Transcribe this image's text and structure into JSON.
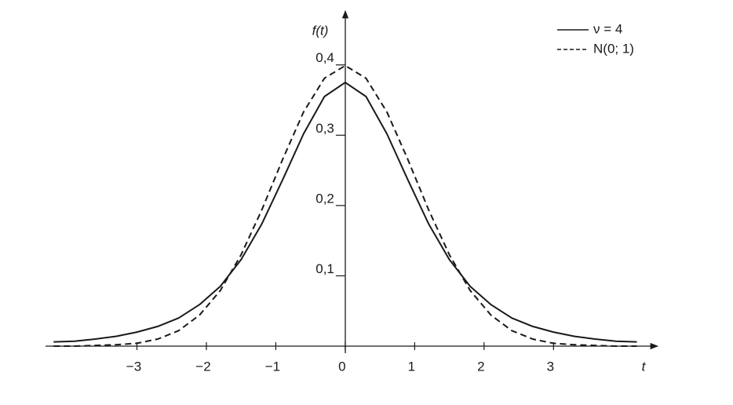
{
  "chart_data": {
    "type": "line",
    "y_label": "f(t)",
    "x_label": "t",
    "x": [
      -4.2,
      -3.9,
      -3.6,
      -3.3,
      -3.0,
      -2.7,
      -2.4,
      -2.1,
      -1.8,
      -1.5,
      -1.2,
      -0.9,
      -0.6,
      -0.3,
      0,
      0.3,
      0.6,
      0.9,
      1.2,
      1.5,
      1.8,
      2.1,
      2.4,
      2.7,
      3.0,
      3.3,
      3.6,
      3.9,
      4.2
    ],
    "series": [
      {
        "name": "ν = 4",
        "color": "#1a1a1a",
        "dash": "solid",
        "values": [
          0.006,
          0.007,
          0.01,
          0.014,
          0.02,
          0.028,
          0.04,
          0.059,
          0.085,
          0.123,
          0.174,
          0.237,
          0.302,
          0.355,
          0.375,
          0.355,
          0.302,
          0.237,
          0.174,
          0.123,
          0.085,
          0.059,
          0.04,
          0.028,
          0.02,
          0.014,
          0.01,
          0.007,
          0.006
        ]
      },
      {
        "name": "N(0; 1)",
        "color": "#1a1a1a",
        "dash": "dashed",
        "values": [
          0.0,
          0.0,
          0.001,
          0.002,
          0.004,
          0.01,
          0.022,
          0.044,
          0.079,
          0.13,
          0.194,
          0.266,
          0.333,
          0.381,
          0.399,
          0.381,
          0.333,
          0.266,
          0.194,
          0.13,
          0.079,
          0.044,
          0.022,
          0.01,
          0.004,
          0.002,
          0.001,
          0.0,
          0.0
        ]
      }
    ],
    "xlim": [
      -4.3,
      4.5
    ],
    "ylim": [
      0,
      0.47
    ],
    "xticks": [
      {
        "value": -3,
        "label": "−3"
      },
      {
        "value": -2,
        "label": "−2"
      },
      {
        "value": -1,
        "label": "−1"
      },
      0,
      1,
      2,
      3
    ],
    "yticks": [
      {
        "value": 0.1,
        "label": "0,1"
      },
      {
        "value": 0.2,
        "label": "0,2"
      },
      {
        "value": 0.3,
        "label": "0,3"
      },
      {
        "value": 0.4,
        "label": "0,4"
      }
    ],
    "legend": "top-right"
  }
}
